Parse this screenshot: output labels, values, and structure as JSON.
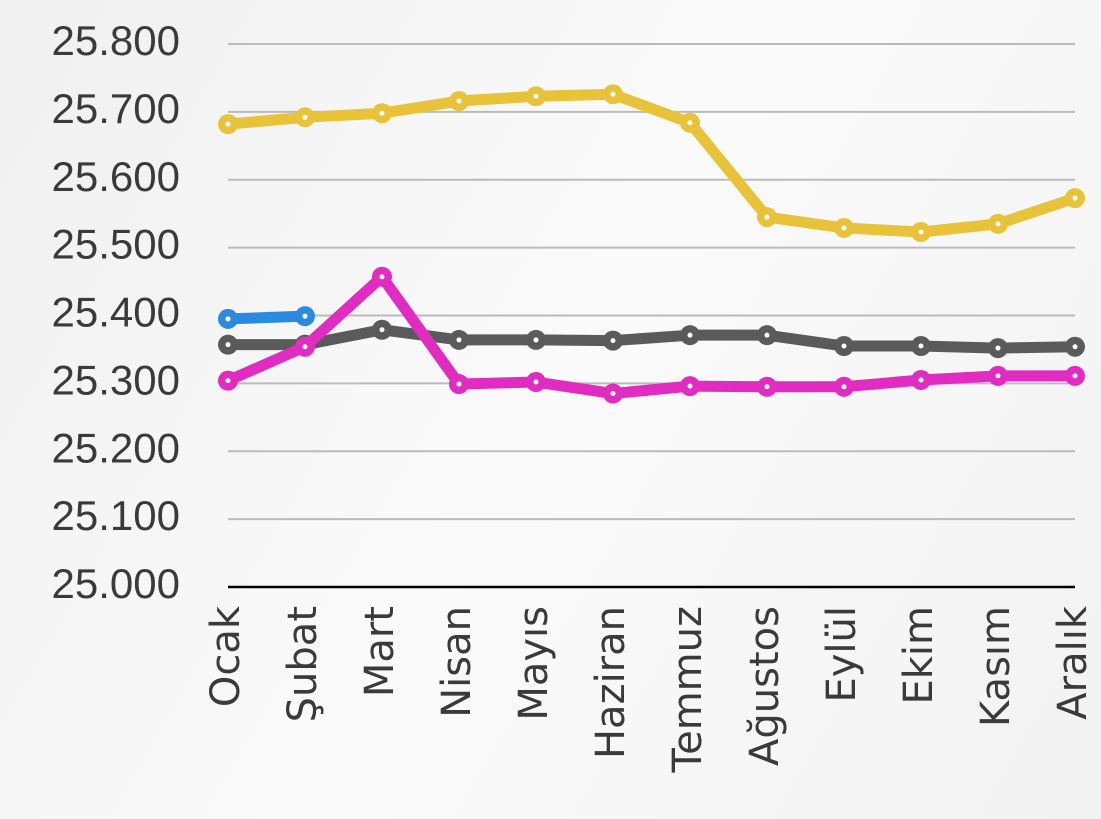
{
  "chart_data": {
    "type": "line",
    "categories": [
      "Ocak",
      "Şubat",
      "Mart",
      "Nisan",
      "Mayıs",
      "Haziran",
      "Temmuz",
      "Ağustos",
      "Eylül",
      "Ekim",
      "Kasım",
      "Aralık"
    ],
    "series": [
      {
        "color": "#e8c33a",
        "values": [
          25682,
          25692,
          25698,
          25716,
          25723,
          25726,
          25684,
          25545,
          25529,
          25523,
          25535,
          25573
        ]
      },
      {
        "color": "#5a5a5a",
        "values": [
          25357,
          25357,
          25379,
          25364,
          25364,
          25363,
          25371,
          25371,
          25355,
          25355,
          25352,
          25354
        ]
      },
      {
        "color": "#e02cc0",
        "values": [
          25304,
          25354,
          25457,
          25299,
          25302,
          25285,
          25296,
          25295,
          25295,
          25305,
          25311,
          25311
        ]
      },
      {
        "color": "#2a8ae0",
        "values": [
          25395,
          25399,
          null,
          null,
          null,
          null,
          null,
          null,
          null,
          null,
          null,
          null
        ]
      }
    ],
    "ylim": [
      25000,
      25800
    ],
    "yticks": [
      {
        "value": 25000,
        "label": "25.000"
      },
      {
        "value": 25100,
        "label": "25.100"
      },
      {
        "value": 25200,
        "label": "25.200"
      },
      {
        "value": 25300,
        "label": "25.300"
      },
      {
        "value": 25400,
        "label": "25.400"
      },
      {
        "value": 25500,
        "label": "25.500"
      },
      {
        "value": 25600,
        "label": "25.600"
      },
      {
        "value": 25700,
        "label": "25.700"
      },
      {
        "value": 25800,
        "label": "25.800"
      }
    ],
    "grid": true
  }
}
